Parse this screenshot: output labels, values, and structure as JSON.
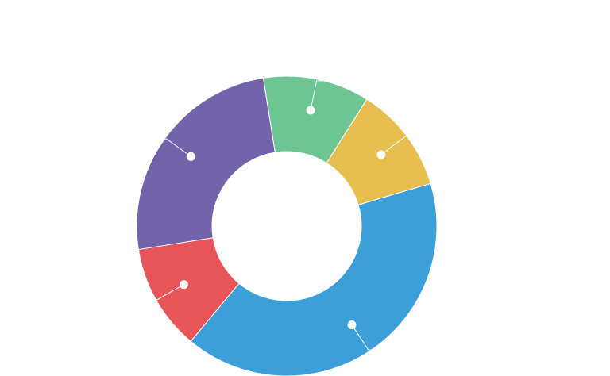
{
  "chart_data": {
    "type": "pie",
    "donut": true,
    "title": "",
    "legend": "none",
    "slices": [
      {
        "value": 11,
        "color": "#6cc592"
      },
      {
        "value": 11,
        "color": "#e6bf50"
      },
      {
        "value": 39,
        "color": "#3d9fd8"
      },
      {
        "value": 11,
        "color": "#e75558"
      },
      {
        "value": 24,
        "color": "#7263ab"
      }
    ]
  }
}
